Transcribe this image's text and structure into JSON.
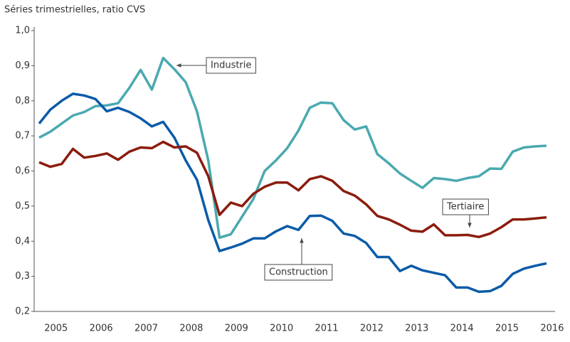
{
  "chart_data": {
    "type": "line",
    "title": "Séries trimestrielles, ratio CVS",
    "categories": [
      null,
      "2005",
      null,
      null,
      null,
      "2006",
      null,
      null,
      null,
      "2007",
      null,
      null,
      null,
      "2008",
      null,
      null,
      null,
      "2009",
      null,
      null,
      null,
      "2010",
      null,
      null,
      null,
      "2011",
      null,
      null,
      null,
      "2012",
      null,
      null,
      null,
      "2013",
      null,
      null,
      null,
      "2014",
      null,
      null,
      null,
      "2015",
      null,
      null,
      null,
      "2016"
    ],
    "series": [
      {
        "name": "Industrie",
        "color": "#4aa9b0",
        "values": [
          0.695,
          0.712,
          0.735,
          0.758,
          0.768,
          0.785,
          0.787,
          0.793,
          0.837,
          0.888,
          0.832,
          0.922,
          0.89,
          0.853,
          0.77,
          0.63,
          0.41,
          0.42,
          0.47,
          0.52,
          0.6,
          0.63,
          0.665,
          0.715,
          0.78,
          0.795,
          0.793,
          0.745,
          0.718,
          0.727,
          0.648,
          0.622,
          0.593,
          0.572,
          0.552,
          0.58,
          0.577,
          0.572,
          0.58,
          0.585,
          0.607,
          0.606,
          0.655,
          0.667,
          0.67,
          0.672
        ]
      },
      {
        "name": "Construction",
        "color": "#0b5ba8",
        "values": [
          0.735,
          0.775,
          0.8,
          0.82,
          0.815,
          0.805,
          0.77,
          0.78,
          0.768,
          0.75,
          0.727,
          0.74,
          0.695,
          0.63,
          0.575,
          0.46,
          0.372,
          0.382,
          0.393,
          0.408,
          0.408,
          0.428,
          0.443,
          0.432,
          0.472,
          0.473,
          0.458,
          0.422,
          0.415,
          0.395,
          0.355,
          0.355,
          0.315,
          0.33,
          0.317,
          0.31,
          0.303,
          0.268,
          0.268,
          0.256,
          0.258,
          0.273,
          0.307,
          0.322,
          0.33,
          0.337
        ]
      },
      {
        "name": "Tertiaire",
        "color": "#8b1c0e",
        "values": [
          0.625,
          0.612,
          0.62,
          0.663,
          0.638,
          0.643,
          0.65,
          0.632,
          0.655,
          0.667,
          0.665,
          0.683,
          0.667,
          0.67,
          0.652,
          0.585,
          0.475,
          0.51,
          0.5,
          0.535,
          0.555,
          0.567,
          0.567,
          0.545,
          0.577,
          0.585,
          0.572,
          0.543,
          0.53,
          0.505,
          0.472,
          0.462,
          0.447,
          0.43,
          0.427,
          0.448,
          0.417,
          0.417,
          0.418,
          0.412,
          0.422,
          0.44,
          0.462,
          0.462,
          0.465,
          0.468
        ]
      }
    ],
    "ylim": [
      0.2,
      1.0
    ],
    "yticks": [
      {
        "value": 0.2,
        "label": "0,2"
      },
      {
        "value": 0.3,
        "label": "0,3"
      },
      {
        "value": 0.4,
        "label": "0,4"
      },
      {
        "value": 0.5,
        "label": "0,5"
      },
      {
        "value": 0.6,
        "label": "0,6"
      },
      {
        "value": 0.7,
        "label": "0,7"
      },
      {
        "value": 0.8,
        "label": "0,8"
      },
      {
        "value": 0.9,
        "label": "0,9"
      },
      {
        "value": 1.0,
        "label": "1,0"
      }
    ],
    "grid": false
  }
}
